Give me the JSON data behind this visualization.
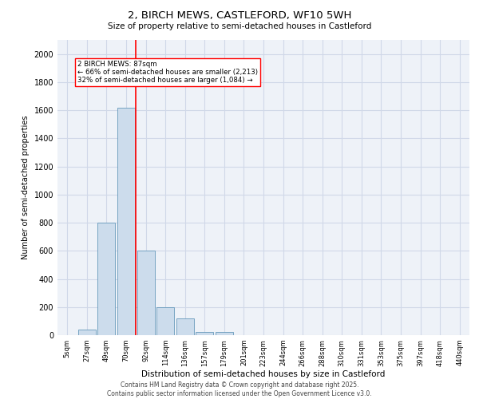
{
  "title": "2, BIRCH MEWS, CASTLEFORD, WF10 5WH",
  "subtitle": "Size of property relative to semi-detached houses in Castleford",
  "xlabel": "Distribution of semi-detached houses by size in Castleford",
  "ylabel": "Number of semi-detached properties",
  "categories": [
    "5sqm",
    "27sqm",
    "49sqm",
    "70sqm",
    "92sqm",
    "114sqm",
    "136sqm",
    "157sqm",
    "179sqm",
    "201sqm",
    "223sqm",
    "244sqm",
    "266sqm",
    "288sqm",
    "310sqm",
    "331sqm",
    "353sqm",
    "375sqm",
    "397sqm",
    "418sqm",
    "440sqm"
  ],
  "values": [
    0,
    40,
    800,
    1620,
    600,
    200,
    120,
    25,
    20,
    0,
    0,
    0,
    0,
    0,
    0,
    0,
    0,
    0,
    0,
    0,
    0
  ],
  "bar_color": "#ccdcec",
  "bar_edge_color": "#6699bb",
  "red_line_x": 3.5,
  "property_label": "2 BIRCH MEWS: 87sqm",
  "annotation_line1": "← 66% of semi-detached houses are smaller (2,213)",
  "annotation_line2": "32% of semi-detached houses are larger (1,084) →",
  "ylim": [
    0,
    2100
  ],
  "yticks": [
    0,
    200,
    400,
    600,
    800,
    1000,
    1200,
    1400,
    1600,
    1800,
    2000
  ],
  "background_color": "#eef2f8",
  "grid_color": "#d0d8e8",
  "footer_line1": "Contains HM Land Registry data © Crown copyright and database right 2025.",
  "footer_line2": "Contains public sector information licensed under the Open Government Licence v3.0."
}
